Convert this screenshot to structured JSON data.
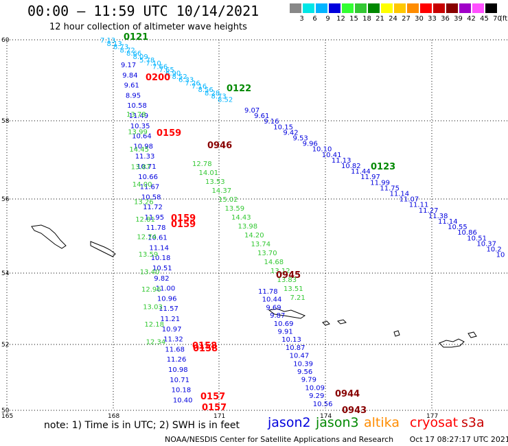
{
  "header": {
    "title": "00:00 – 11:59 UTC 10/14/2021",
    "subtitle": "12 hour collection of altimeter wave heights"
  },
  "legend": {
    "labels": [
      "3",
      "6",
      "9",
      "12",
      "15",
      "18",
      "21",
      "24",
      "27",
      "30",
      "33",
      "36",
      "39",
      "42",
      "45",
      "70"
    ],
    "colors": [
      "#888888",
      "#00e6e6",
      "#00b4ff",
      "#0000dd",
      "#33ff33",
      "#33c833",
      "#008800",
      "#ffff00",
      "#ffc800",
      "#ff8c00",
      "#ff0000",
      "#c80000",
      "#880000",
      "#a000c8",
      "#ff50ff",
      "#000000"
    ],
    "extra_color": "#ffc8ff",
    "unit": "(ft)"
  },
  "axes": {
    "lat_labels": [
      "60",
      "58",
      "56",
      "54",
      "52",
      "50"
    ],
    "lon_labels": [
      "165",
      "168",
      "171",
      "174",
      "177"
    ]
  },
  "passes": [
    {
      "label": "0121",
      "color": "#008800"
    },
    {
      "label": "0200",
      "color": "#ff0000"
    },
    {
      "label": "0122",
      "color": "#008800"
    },
    {
      "label": "0159",
      "color": "#ff0000"
    },
    {
      "label": "0946",
      "color": "#880000"
    },
    {
      "label": "0123",
      "color": "#008800"
    },
    {
      "label": "0159",
      "color": "#ff0000"
    },
    {
      "label": "0159",
      "color": "#ff0000"
    },
    {
      "label": "0945",
      "color": "#880000"
    },
    {
      "label": "0158",
      "color": "#ff0000"
    },
    {
      "label": "0158",
      "color": "#ff0000"
    },
    {
      "label": "0157",
      "color": "#ff0000"
    },
    {
      "label": "0157",
      "color": "#ff0000"
    },
    {
      "label": "0944",
      "color": "#880000"
    },
    {
      "label": "0943",
      "color": "#880000"
    }
  ],
  "values": {
    "cyan": [
      "7.13",
      "8.13",
      "8.73",
      "8.72",
      "8.66",
      "8.09",
      "5.78",
      "7.10",
      "7.66",
      "7.65",
      "6.90",
      "8.52",
      "6.33",
      "7.26",
      "7.16",
      "8.56",
      "8.28",
      "8.73",
      "8.52"
    ],
    "blue_track_a": [
      "9.17",
      "9.84",
      "9.61",
      "8.95",
      "10.58",
      "11.49",
      "10.35",
      "10.64",
      "10.98",
      "11.33",
      "10.71",
      "10.66",
      "11.67",
      "10.58",
      "11.72",
      "11.95",
      "11.78",
      "10.61",
      "11.14",
      "10.18",
      "10.51",
      "9.82",
      "11.00",
      "10.96",
      "11.57",
      "11.21",
      "10.97",
      "11.32",
      "11.68",
      "11.26",
      "10.98",
      "10.71",
      "10.18",
      "10.40"
    ],
    "blue_track_b": [
      "9.07",
      "9.61",
      "9.16",
      "10.15",
      "9.42",
      "9.53",
      "9.96",
      "10.10",
      "10.41",
      "11.13",
      "10.82",
      "11.44",
      "11.97",
      "11.99",
      "11.75",
      "11.14",
      "11.07",
      "11.11",
      "11.27",
      "11.38",
      "11.14",
      "10.55",
      "10.86",
      "10.51",
      "10.37",
      "10.2",
      "10"
    ],
    "blue_track_c": [
      "11.78",
      "10.44",
      "9.69",
      "9.87",
      "10.69",
      "9.91",
      "10.13",
      "10.87",
      "10.47",
      "10.39",
      "9.56",
      "9.79",
      "10.09",
      "9.29",
      "10.56"
    ],
    "green_track_a": [
      "13.78",
      "13.99",
      "14.45",
      "13.87",
      "14.00",
      "13.26",
      "12.81",
      "12.74",
      "13.59",
      "13.40",
      "12.96",
      "13.03",
      "12.18",
      "12.34"
    ],
    "green_track_b": [
      "12.78",
      "14.01",
      "13.53",
      "14.37",
      "15.02",
      "13.59",
      "14.43",
      "13.98",
      "14.20",
      "13.74",
      "13.70",
      "14.68",
      "13.12",
      "13.83",
      "13.51",
      "7.21"
    ]
  },
  "footer": {
    "note": "note: 1) Time is in UTC; 2) SWH is in feet",
    "satellites": [
      {
        "name": "jason2",
        "color": "#0000dd"
      },
      {
        "name": "jason3",
        "color": "#008800"
      },
      {
        "name": "altika",
        "color": "#ff8c00"
      },
      {
        "name": "cryosat",
        "color": "#ff0000"
      },
      {
        "name": "s3a",
        "color": "#c80000"
      }
    ],
    "credit": "NOAA/NESDIS Center for Satellite Applications and Research",
    "timestamp": "Oct 17 08:27:17 UTC 2021"
  }
}
